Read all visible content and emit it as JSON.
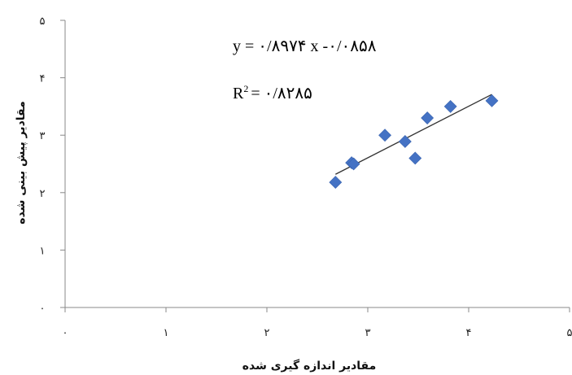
{
  "chart_data": {
    "type": "scatter",
    "title": "",
    "xlabel": "مقادیر اندازه گیری شده",
    "ylabel": "مقادیر پیش بینی شده",
    "xlim": [
      0,
      5
    ],
    "ylim": [
      0,
      5
    ],
    "x_ticks": [
      0,
      1,
      2,
      3,
      4,
      5
    ],
    "y_ticks": [
      0,
      1,
      2,
      3,
      4,
      5
    ],
    "x_tick_labels": [
      "۰",
      "۱",
      "۲",
      "۳",
      "۴",
      "۵"
    ],
    "y_tick_labels": [
      "۰",
      "۱",
      "۲",
      "۳",
      "۴",
      "۵"
    ],
    "grid": false,
    "marker_color": "#4472C4",
    "series": [
      {
        "x": [
          2.68,
          2.84,
          2.86,
          3.17,
          3.37,
          3.47,
          3.59,
          3.82,
          4.23
        ],
        "y": [
          2.18,
          2.52,
          2.5,
          3.0,
          2.89,
          2.6,
          3.3,
          3.5,
          3.6
        ]
      }
    ],
    "trendline": {
      "x_range": [
        2.68,
        4.23
      ],
      "slope": 0.8974,
      "intercept": -0.0858,
      "color": "#333333"
    },
    "annotations": {
      "equation": "y = ۰/۸۹۷۴  x -۰/۰۸۵۸",
      "r2_label": "R",
      "r2_sup": "2",
      "r2_value": "= ۰/۸۲۸۵"
    }
  }
}
